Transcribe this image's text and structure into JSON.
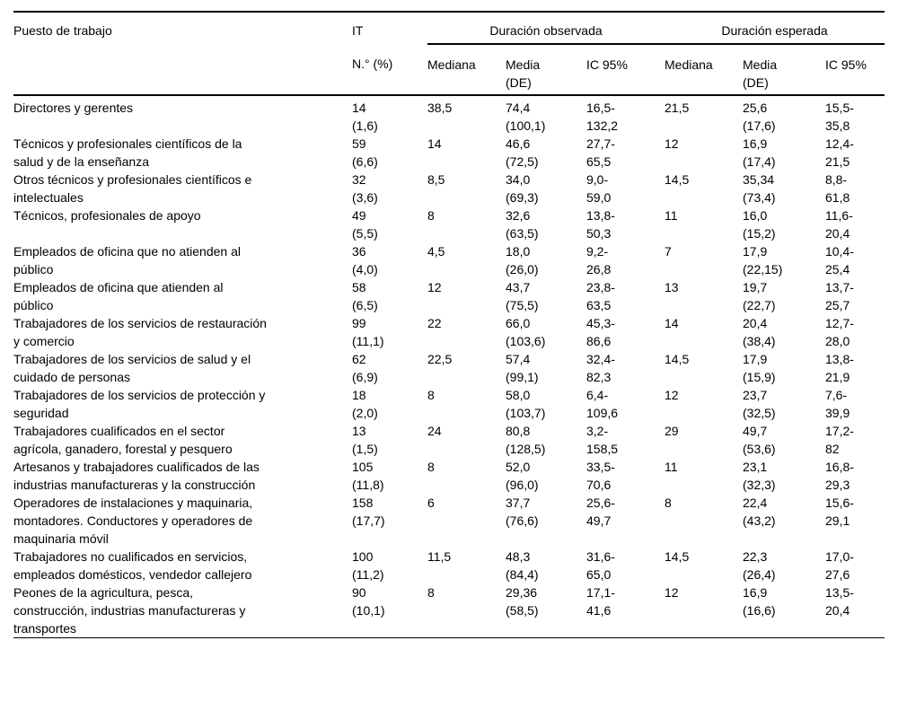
{
  "table": {
    "header": {
      "puesto": "Puesto de trabajo",
      "it_line1": "IT",
      "it_line2": "N.° (%)",
      "obs_group": "Duración observada",
      "esp_group": "Duración esperada",
      "mediana": "Mediana",
      "media_de": "Media\n(DE)",
      "ic95": "IC 95%"
    },
    "rows": [
      {
        "puesto": "Directores y gerentes",
        "it": "14\n(1,6)",
        "obs_mediana": "38,5",
        "obs_media_de": "74,4\n(100,1)",
        "obs_ic95": "16,5-\n132,2",
        "esp_mediana": "21,5",
        "esp_media_de": "25,6\n(17,6)",
        "esp_ic95": "15,5-\n35,8"
      },
      {
        "puesto": "Técnicos y profesionales científicos de la\nsalud y de la enseñanza",
        "it": "59\n(6,6)",
        "obs_mediana": "14",
        "obs_media_de": "46,6\n(72,5)",
        "obs_ic95": "27,7-\n65,5",
        "esp_mediana": "12",
        "esp_media_de": "16,9\n(17,4)",
        "esp_ic95": "12,4-\n21,5"
      },
      {
        "puesto": "Otros técnicos y profesionales científicos e\nintelectuales",
        "it": "32\n(3,6)",
        "obs_mediana": "8,5",
        "obs_media_de": "34,0\n(69,3)",
        "obs_ic95": "9,0-\n59,0",
        "esp_mediana": "14,5",
        "esp_media_de": "35,34\n(73,4)",
        "esp_ic95": "8,8-\n61,8"
      },
      {
        "puesto": "Técnicos, profesionales de apoyo",
        "it": "49\n(5,5)",
        "obs_mediana": "8",
        "obs_media_de": "32,6\n(63,5)",
        "obs_ic95": "13,8-\n50,3",
        "esp_mediana": "11",
        "esp_media_de": "16,0\n(15,2)",
        "esp_ic95": "11,6-\n20,4"
      },
      {
        "puesto": "Empleados de oficina que no atienden al\npúblico",
        "it": "36\n(4,0)",
        "obs_mediana": "4,5",
        "obs_media_de": "18,0\n(26,0)",
        "obs_ic95": "9,2-\n26,8",
        "esp_mediana": "7",
        "esp_media_de": "17,9\n(22,15)",
        "esp_ic95": "10,4-\n25,4"
      },
      {
        "puesto": "Empleados de oficina que atienden al\npúblico",
        "it": "58\n(6,5)",
        "obs_mediana": "12",
        "obs_media_de": "43,7\n(75,5)",
        "obs_ic95": "23,8-\n63,5",
        "esp_mediana": "13",
        "esp_media_de": "19,7\n(22,7)",
        "esp_ic95": "13,7-\n25,7"
      },
      {
        "puesto": "Trabajadores de los servicios de restauración\ny comercio",
        "it": "99\n(11,1)",
        "obs_mediana": "22",
        "obs_media_de": "66,0\n(103,6)",
        "obs_ic95": "45,3-\n86,6",
        "esp_mediana": "14",
        "esp_media_de": "20,4\n(38,4)",
        "esp_ic95": "12,7-\n28,0"
      },
      {
        "puesto": "Trabajadores de los servicios de salud y el\ncuidado de personas",
        "it": "62\n(6,9)",
        "obs_mediana": "22,5",
        "obs_media_de": "57,4\n(99,1)",
        "obs_ic95": "32,4-\n82,3",
        "esp_mediana": "14,5",
        "esp_media_de": "17,9\n(15,9)",
        "esp_ic95": "13,8-\n21,9"
      },
      {
        "puesto": "Trabajadores de los servicios de protección y\nseguridad",
        "it": "18\n(2,0)",
        "obs_mediana": "8",
        "obs_media_de": "58,0\n(103,7)",
        "obs_ic95": "6,4-\n109,6",
        "esp_mediana": "12",
        "esp_media_de": "23,7\n(32,5)",
        "esp_ic95": "7,6-\n39,9"
      },
      {
        "puesto": "Trabajadores cualificados en el sector\nagrícola, ganadero, forestal y pesquero",
        "it": "13\n(1,5)",
        "obs_mediana": "24",
        "obs_media_de": "80,8\n(128,5)",
        "obs_ic95": "3,2-\n158,5",
        "esp_mediana": "29",
        "esp_media_de": "49,7\n(53,6)",
        "esp_ic95": "17,2-\n82"
      },
      {
        "puesto": "Artesanos y trabajadores cualificados de las\nindustrias manufactureras y la construcción",
        "it": "105\n(11,8)",
        "obs_mediana": "8",
        "obs_media_de": "52,0\n(96,0)",
        "obs_ic95": "33,5-\n70,6",
        "esp_mediana": "11",
        "esp_media_de": "23,1\n(32,3)",
        "esp_ic95": "16,8-\n29,3"
      },
      {
        "puesto": "Operadores de instalaciones y maquinaria,\nmontadores. Conductores y operadores de\nmaquinaria móvil",
        "it": "158\n(17,7)",
        "obs_mediana": "6",
        "obs_media_de": "37,7\n(76,6)",
        "obs_ic95": "25,6-\n49,7",
        "esp_mediana": "8",
        "esp_media_de": "22,4\n(43,2)",
        "esp_ic95": "15,6-\n29,1"
      },
      {
        "puesto": "Trabajadores no cualificados en servicios,\nempleados domésticos, vendedor callejero",
        "it": "100\n(11,2)",
        "obs_mediana": "11,5",
        "obs_media_de": "48,3\n(84,4)",
        "obs_ic95": "31,6-\n65,0",
        "esp_mediana": "14,5",
        "esp_media_de": "22,3\n(26,4)",
        "esp_ic95": "17,0-\n27,6"
      },
      {
        "puesto": "Peones de la agricultura, pesca,\nconstrucción, industrias manufactureras y\ntransportes",
        "it": "90\n(10,1)",
        "obs_mediana": "8",
        "obs_media_de": "29,36\n(58,5)",
        "obs_ic95": "17,1-\n41,6",
        "esp_mediana": "12",
        "esp_media_de": "16,9\n(16,6)",
        "esp_ic95": "13,5-\n20,4"
      }
    ]
  }
}
